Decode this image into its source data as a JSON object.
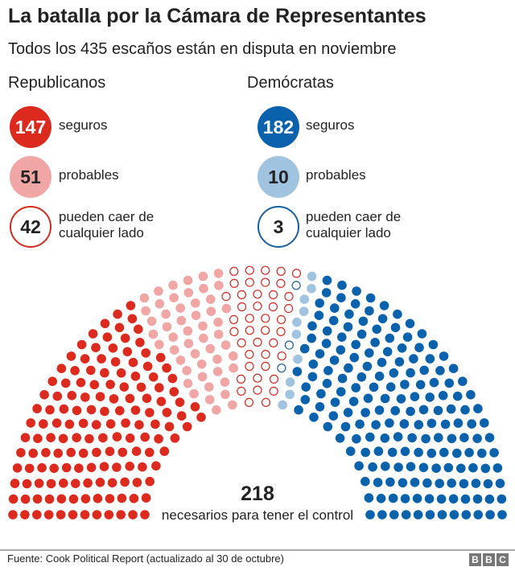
{
  "title": "La batalla por la Cámara de Representantes",
  "subtitle": "Todos los 435 escaños están en disputa en noviembre",
  "legend": {
    "republicans": {
      "name": "Republicanos",
      "safe": "147",
      "safe_label": "seguros",
      "likely": "51",
      "likely_label": "probables",
      "tossup": "42",
      "tossup_label_1": "pueden caer de",
      "tossup_label_2": "cualquier lado"
    },
    "democrats": {
      "name": "Demócratas",
      "safe": "182",
      "safe_label": "seguros",
      "likely": "10",
      "likely_label": "probables",
      "tossup": "3",
      "tossup_label_1": "pueden caer de",
      "tossup_label_2": "cualquier lado"
    }
  },
  "majority": {
    "value": "218",
    "label": "necesarios para tener el control"
  },
  "source": "Fuente: Cook Political Report (actualizado al 30 de octubre)",
  "logo": [
    "B",
    "B",
    "C"
  ],
  "colors": {
    "rep_safe": "#dc2a1e",
    "rep_likely": "#f0a6a4",
    "rep_tossup": "#d42a1f",
    "dem_tossup": "#1a5f9e",
    "dem_likely": "#a0c3e0",
    "dem_safe": "#0a62ac"
  },
  "chart_data": {
    "type": "parliament",
    "total_seats": 435,
    "categories": [
      "Republicanos seguros",
      "Republicanos probables",
      "Republicanos pueden caer de cualquier lado",
      "Demócratas pueden caer de cualquier lado",
      "Demócratas probables",
      "Demócratas seguros"
    ],
    "values": [
      147,
      51,
      42,
      3,
      10,
      182
    ],
    "order": "left-to-right"
  }
}
